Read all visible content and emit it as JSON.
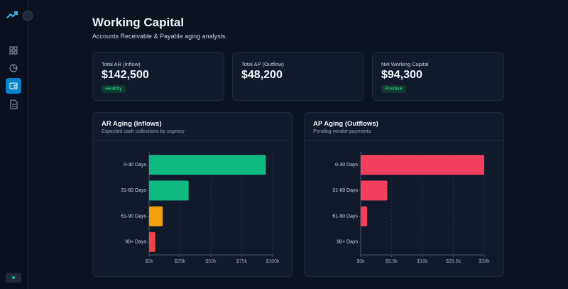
{
  "header": {
    "title": "Working Capital",
    "subtitle": "Accounts Receivable & Payable aging analysis."
  },
  "kpis": [
    {
      "label": "Total AR (Inflow)",
      "value": "$142,500",
      "badge": "Healthy"
    },
    {
      "label": "Total AP (Outflow)",
      "value": "$48,200"
    },
    {
      "label": "Net Working Capital",
      "value": "$94,300",
      "badge": "Positive"
    }
  ],
  "chart_data": [
    {
      "type": "bar",
      "orientation": "horizontal",
      "title": "AR Aging (Inflows)",
      "subtitle": "Expected cash collections by urgency",
      "categories": [
        "0-30 Days",
        "31-60 Days",
        "61-90 Days",
        "90+ Days"
      ],
      "values": [
        94500,
        32000,
        11000,
        5000
      ],
      "colors": [
        "#10b981",
        "#10b981",
        "#f59e0b",
        "#ef4444"
      ],
      "xlim": [
        0,
        100000
      ],
      "xticks": [
        {
          "value": 0,
          "label": "$0k"
        },
        {
          "value": 25000,
          "label": "$25k"
        },
        {
          "value": 50000,
          "label": "$50k"
        },
        {
          "value": 75000,
          "label": "$75k"
        },
        {
          "value": 100000,
          "label": "$100k"
        }
      ],
      "grid": true
    },
    {
      "type": "bar",
      "orientation": "horizontal",
      "title": "AP Aging (Outflows)",
      "subtitle": "Pending vendor payments",
      "categories": [
        "0-30 Days",
        "31-60 Days",
        "61-90 Days",
        "90+ Days"
      ],
      "values": [
        38000,
        8200,
        2000,
        0
      ],
      "colors": [
        "#f43f5e",
        "#f43f5e",
        "#f43f5e",
        "#f43f5e"
      ],
      "xlim": [
        0,
        38000
      ],
      "xticks": [
        {
          "value": 0,
          "label": "$0k"
        },
        {
          "value": 9500,
          "label": "$9.5k"
        },
        {
          "value": 19000,
          "label": "$19k"
        },
        {
          "value": 28500,
          "label": "$28.5k"
        },
        {
          "value": 38000,
          "label": "$38k"
        }
      ],
      "grid": true
    }
  ]
}
